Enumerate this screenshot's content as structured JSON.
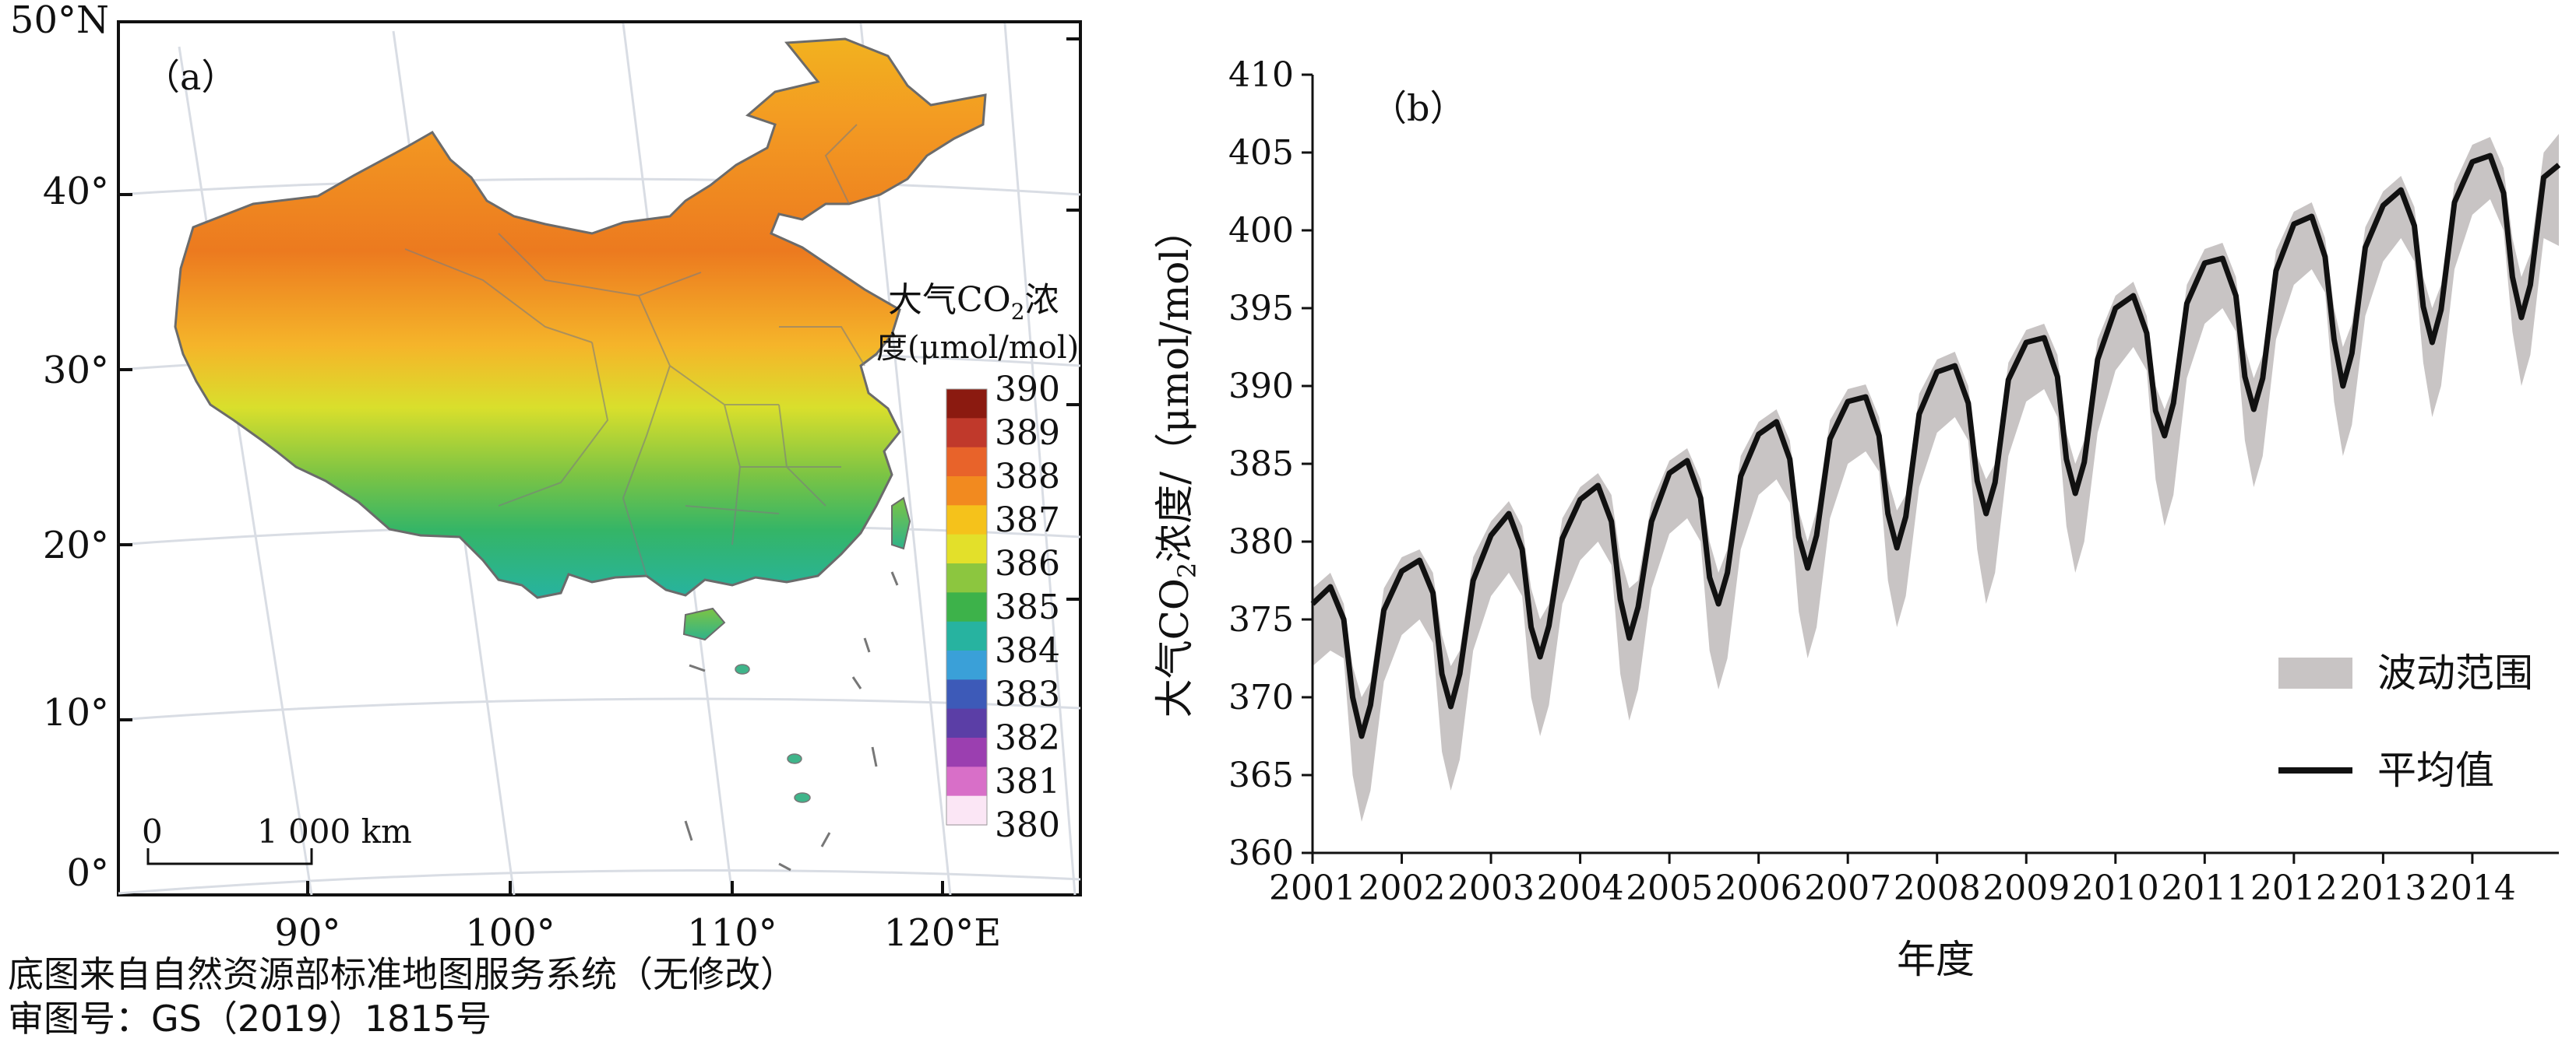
{
  "panel_a": {
    "label": "（a）",
    "lat_labels": [
      "50°N",
      "40°",
      "30°",
      "20°",
      "10°",
      "0°"
    ],
    "lon_labels": [
      "90°",
      "100°",
      "110°",
      "120°E"
    ],
    "legend_title_line1": "大气CO",
    "legend_title_sub": "2",
    "legend_title_line1_suffix": "浓",
    "legend_title_line2": "度(μmol/mol)",
    "legend_ticks": [
      "390",
      "389",
      "388",
      "387",
      "386",
      "385",
      "384",
      "383",
      "382",
      "381",
      "380"
    ],
    "colorbar_colors": [
      "#8b1a10",
      "#c0392b",
      "#e8632a",
      "#f28a1f",
      "#f5c21b",
      "#e3e02a",
      "#8cc63f",
      "#3db24a",
      "#27b3a0",
      "#3aa0d8",
      "#3d5ab8",
      "#5b3ea6",
      "#9b3fb0",
      "#d86fc8",
      "#fbe6f5"
    ],
    "scalebar_zero": "0",
    "scalebar_label": "1 000 km"
  },
  "chart_data": {
    "type": "area",
    "panel_label": "（b）",
    "title": "",
    "xlabel": "年度",
    "ylabel_main": "大气CO",
    "ylabel_sub": "2",
    "ylabel_tail": "浓度/（μmol/mol）",
    "x_ticks": [
      "2001",
      "2002",
      "2003",
      "2004",
      "2005",
      "2006",
      "2007",
      "2008",
      "2009",
      "2010",
      "2011",
      "2012",
      "2013",
      "2014"
    ],
    "y_ticks": [
      410,
      405,
      400,
      395,
      390,
      385,
      380,
      375,
      370,
      365,
      360
    ],
    "xlim": [
      2001,
      2014.97
    ],
    "ylim": [
      360,
      410
    ],
    "grid": false,
    "legend_position": "bottom-right",
    "series": [
      {
        "name": "平均值",
        "color": "#111111",
        "x": [
          2001.0,
          2001.2,
          2001.35,
          2001.45,
          2001.55,
          2001.65,
          2001.8,
          2002.0,
          2002.2,
          2002.35,
          2002.45,
          2002.55,
          2002.65,
          2002.8,
          2003.0,
          2003.2,
          2003.35,
          2003.45,
          2003.55,
          2003.65,
          2003.8,
          2004.0,
          2004.2,
          2004.35,
          2004.45,
          2004.55,
          2004.65,
          2004.8,
          2005.0,
          2005.2,
          2005.35,
          2005.45,
          2005.55,
          2005.65,
          2005.8,
          2006.0,
          2006.2,
          2006.35,
          2006.45,
          2006.55,
          2006.65,
          2006.8,
          2007.0,
          2007.2,
          2007.35,
          2007.45,
          2007.55,
          2007.65,
          2007.8,
          2008.0,
          2008.2,
          2008.35,
          2008.45,
          2008.55,
          2008.65,
          2008.8,
          2009.0,
          2009.2,
          2009.35,
          2009.45,
          2009.55,
          2009.65,
          2009.8,
          2010.0,
          2010.2,
          2010.35,
          2010.45,
          2010.55,
          2010.65,
          2010.8,
          2011.0,
          2011.2,
          2011.35,
          2011.45,
          2011.55,
          2011.65,
          2011.8,
          2012.0,
          2012.2,
          2012.35,
          2012.45,
          2012.55,
          2012.65,
          2012.8,
          2013.0,
          2013.2,
          2013.35,
          2013.45,
          2013.55,
          2013.65,
          2013.8,
          2014.0,
          2014.2,
          2014.35,
          2014.45,
          2014.55,
          2014.65,
          2014.8,
          2014.97
        ],
        "y": [
          376.0,
          377.1,
          375.0,
          370.0,
          367.5,
          369.5,
          375.6,
          378.1,
          378.8,
          376.7,
          371.5,
          369.4,
          371.5,
          377.5,
          380.4,
          381.8,
          379.5,
          374.5,
          372.6,
          374.6,
          380.2,
          382.7,
          383.6,
          381.3,
          376.3,
          373.8,
          375.8,
          381.3,
          384.4,
          385.2,
          382.8,
          377.7,
          376.0,
          378.0,
          384.2,
          386.9,
          387.7,
          385.3,
          380.3,
          378.3,
          380.4,
          386.6,
          389.0,
          389.3,
          386.8,
          381.8,
          379.6,
          381.6,
          388.2,
          390.9,
          391.3,
          388.9,
          383.9,
          381.8,
          383.8,
          390.4,
          392.8,
          393.1,
          390.6,
          385.3,
          383.1,
          385.1,
          391.7,
          395.0,
          395.8,
          393.4,
          388.4,
          386.8,
          388.9,
          395.3,
          397.9,
          398.2,
          395.8,
          390.6,
          388.5,
          390.5,
          397.4,
          400.4,
          400.9,
          398.3,
          393.0,
          390.0,
          392.1,
          398.9,
          401.6,
          402.6,
          400.3,
          395.1,
          392.8,
          394.9,
          401.8,
          404.4,
          404.8,
          402.4,
          397.0,
          394.4,
          396.5,
          403.4,
          404.2
        ]
      }
    ],
    "band": {
      "name": "波动范围",
      "color": "#c8c4c4",
      "upper": [
        377.0,
        378.0,
        376.0,
        372.0,
        370.0,
        371.0,
        377.0,
        379.0,
        379.5,
        378.0,
        374.0,
        372.0,
        373.0,
        379.0,
        381.3,
        382.6,
        381.0,
        377.0,
        375.0,
        376.0,
        381.5,
        383.5,
        384.4,
        383.0,
        379.0,
        377.0,
        377.5,
        382.5,
        385.2,
        386.0,
        384.0,
        380.0,
        378.0,
        379.5,
        385.5,
        387.7,
        388.5,
        386.5,
        382.0,
        380.0,
        382.0,
        387.8,
        389.8,
        390.1,
        388.0,
        384.0,
        382.0,
        383.0,
        389.5,
        391.7,
        392.2,
        390.0,
        385.5,
        384.0,
        385.0,
        391.5,
        393.6,
        394.0,
        392.0,
        387.0,
        385.0,
        386.5,
        393.0,
        395.8,
        396.7,
        394.5,
        390.0,
        388.5,
        390.0,
        396.5,
        398.8,
        399.2,
        397.0,
        392.5,
        390.5,
        392.0,
        398.7,
        401.2,
        401.8,
        399.5,
        395.0,
        392.5,
        394.0,
        400.2,
        402.5,
        403.5,
        401.5,
        397.0,
        395.0,
        396.5,
        403.0,
        405.5,
        406.0,
        404.0,
        399.5,
        397.0,
        398.5,
        405.0,
        406.2
      ],
      "lower": [
        372.0,
        373.0,
        372.5,
        365.0,
        362.0,
        364.0,
        371.0,
        374.0,
        375.0,
        373.5,
        366.5,
        364.0,
        366.0,
        373.0,
        376.5,
        378.0,
        376.5,
        370.0,
        367.5,
        369.5,
        376.0,
        378.8,
        380.0,
        378.5,
        371.5,
        368.5,
        370.5,
        377.0,
        380.5,
        381.5,
        380.0,
        373.0,
        370.5,
        372.5,
        379.5,
        383.0,
        384.0,
        382.5,
        375.5,
        372.5,
        374.5,
        381.5,
        385.0,
        385.8,
        384.5,
        377.5,
        374.5,
        376.5,
        383.5,
        387.0,
        388.0,
        386.5,
        379.5,
        376.0,
        378.0,
        385.5,
        389.0,
        389.8,
        388.0,
        381.0,
        378.0,
        380.0,
        387.0,
        391.0,
        392.5,
        391.0,
        384.0,
        381.0,
        383.0,
        390.5,
        394.0,
        395.0,
        393.5,
        386.5,
        383.5,
        385.5,
        393.0,
        396.5,
        397.5,
        396.0,
        389.0,
        385.5,
        387.5,
        394.5,
        398.0,
        399.5,
        398.0,
        391.5,
        388.0,
        390.0,
        397.5,
        401.0,
        402.0,
        400.0,
        393.5,
        390.0,
        392.0,
        399.5,
        399.0
      ]
    }
  },
  "caption": {
    "line1": "底图来自自然资源部标准地图服务系统（无修改）",
    "line2": "审图号：GS（2019）1815号"
  }
}
